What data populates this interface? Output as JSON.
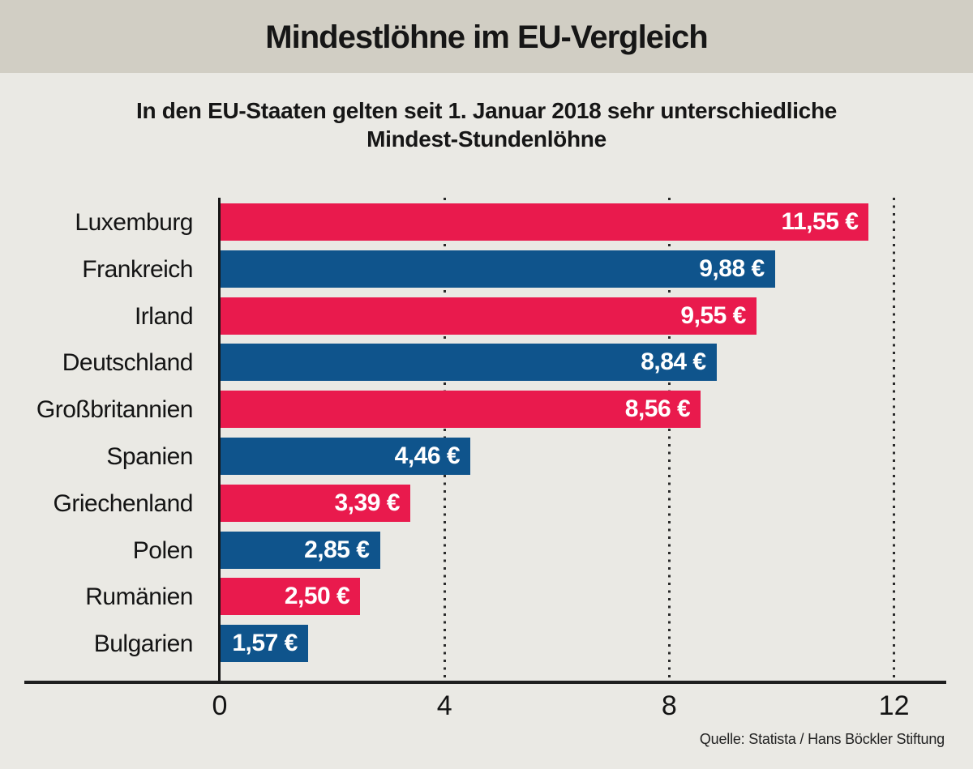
{
  "colors": {
    "header_background": "#d1cec4",
    "page_background": "#eae9e4",
    "bar_red": "#e91a4d",
    "bar_blue": "#0f548c",
    "axis": "#1f1f1f",
    "value_text": "#ffffff"
  },
  "chart_data": {
    "type": "bar",
    "orientation": "horizontal",
    "title": "Mindestlöhne im EU-Vergleich",
    "subtitle_lines": [
      "In den EU-Staaten gelten seit 1. Januar 2018 sehr unterschiedliche",
      "Mindest-Stundenlöhne"
    ],
    "categories": [
      "Luxemburg",
      "Frankreich",
      "Irland",
      "Deutschland",
      "Großbritannien",
      "Spanien",
      "Griechenland",
      "Polen",
      "Rumänien",
      "Bulgarien"
    ],
    "values": [
      11.55,
      9.88,
      9.55,
      8.84,
      8.56,
      4.46,
      3.39,
      2.85,
      2.5,
      1.57
    ],
    "value_labels": [
      "11,55 €",
      "9,88 €",
      "9,55 €",
      "8,84 €",
      "8,56 €",
      "4,46 €",
      "3,39 €",
      "2,85 €",
      "2,50 €",
      "1,57 €"
    ],
    "bar_colors": [
      "#e91a4d",
      "#0f548c",
      "#e91a4d",
      "#0f548c",
      "#e91a4d",
      "#0f548c",
      "#e91a4d",
      "#0f548c",
      "#e91a4d",
      "#0f548c"
    ],
    "xlim": [
      0,
      12
    ],
    "x_tick_values": [
      0,
      4,
      8,
      12
    ],
    "x_tick_labels": [
      "0",
      "4",
      "8",
      "12"
    ],
    "gridlines_at": [
      4,
      8,
      12
    ],
    "grid_style": "dotted",
    "legend": "none",
    "source": "Quelle: Statista / Hans Böckler Stiftung"
  }
}
